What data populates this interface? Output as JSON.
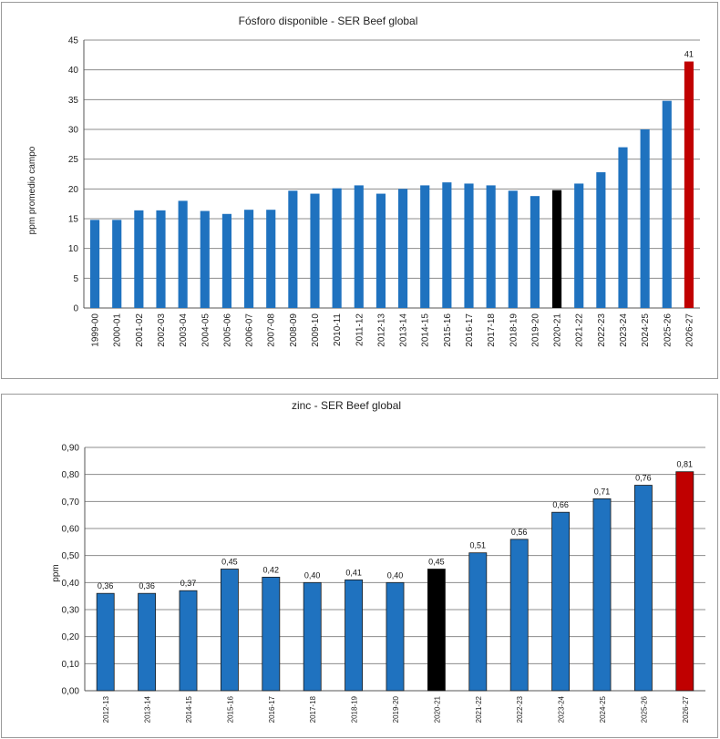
{
  "colors": {
    "bar": "#1f72bf",
    "highlight_black": "#000000",
    "highlight_red": "#c00000",
    "grid": "#8c8c8c"
  },
  "chart_data": [
    {
      "type": "bar",
      "title": "Fósforo disponible - SER Beef global",
      "xlabel": "",
      "ylabel": "ppm promedio campo",
      "ylim": [
        0,
        45
      ],
      "yticks": [
        "0",
        "5",
        "10",
        "15",
        "20",
        "25",
        "30",
        "35",
        "40",
        "45"
      ],
      "grid": true,
      "categories": [
        "1999-00",
        "2000-01",
        "2001-02",
        "2002-03",
        "2003-04",
        "2004-05",
        "2005-06",
        "2006-07",
        "2007-08",
        "2008-09",
        "2009-10",
        "2010-11",
        "2011-12",
        "2012-13",
        "2013-14",
        "2014-15",
        "2015-16",
        "2016-17",
        "2017-18",
        "2018-19",
        "2019-20",
        "2020-21",
        "2021-22",
        "2022-23",
        "2023-24",
        "2024-25",
        "2025-26",
        "2026-27"
      ],
      "values": [
        14.8,
        14.8,
        16.4,
        16.4,
        18.0,
        16.3,
        15.8,
        16.5,
        16.5,
        19.7,
        19.2,
        20.1,
        20.6,
        19.2,
        20.0,
        20.6,
        21.1,
        20.9,
        20.6,
        19.7,
        18.8,
        19.8,
        20.9,
        22.8,
        27.0,
        30.0,
        34.8,
        41.4
      ],
      "bar_colors": [
        "bar",
        "bar",
        "bar",
        "bar",
        "bar",
        "bar",
        "bar",
        "bar",
        "bar",
        "bar",
        "bar",
        "bar",
        "bar",
        "bar",
        "bar",
        "bar",
        "bar",
        "bar",
        "bar",
        "bar",
        "bar",
        "highlight_black",
        "bar",
        "bar",
        "bar",
        "bar",
        "bar",
        "highlight_red"
      ],
      "data_labels": [
        {
          "index": 27,
          "text": "41"
        }
      ]
    },
    {
      "type": "bar",
      "title": "zinc - SER Beef global",
      "xlabel": "",
      "ylabel": "ppm",
      "ylim": [
        0,
        0.9
      ],
      "yticks": [
        "0,00",
        "0,10",
        "0,20",
        "0,30",
        "0,40",
        "0,50",
        "0,60",
        "0,70",
        "0,80",
        "0,90"
      ],
      "grid": true,
      "categories": [
        "2012-13",
        "2013-14",
        "2014-15",
        "2015-16",
        "2016-17",
        "2017-18",
        "2018-19",
        "2019-20",
        "2020-21",
        "2021-22",
        "2022-23",
        "2023-24",
        "2024-25",
        "2025-26",
        "2026-27"
      ],
      "values": [
        0.36,
        0.36,
        0.37,
        0.45,
        0.42,
        0.4,
        0.41,
        0.4,
        0.45,
        0.51,
        0.56,
        0.66,
        0.71,
        0.76,
        0.81
      ],
      "bar_colors": [
        "bar",
        "bar",
        "bar",
        "bar",
        "bar",
        "bar",
        "bar",
        "bar",
        "highlight_black",
        "bar",
        "bar",
        "bar",
        "bar",
        "bar",
        "highlight_red"
      ],
      "value_labels": [
        "0,36",
        "0,36",
        "0,37",
        "0,45",
        "0,42",
        "0,40",
        "0,41",
        "0,40",
        "0,45",
        "0,51",
        "0,56",
        "0,66",
        "0,71",
        "0,76",
        "0,81"
      ]
    }
  ]
}
